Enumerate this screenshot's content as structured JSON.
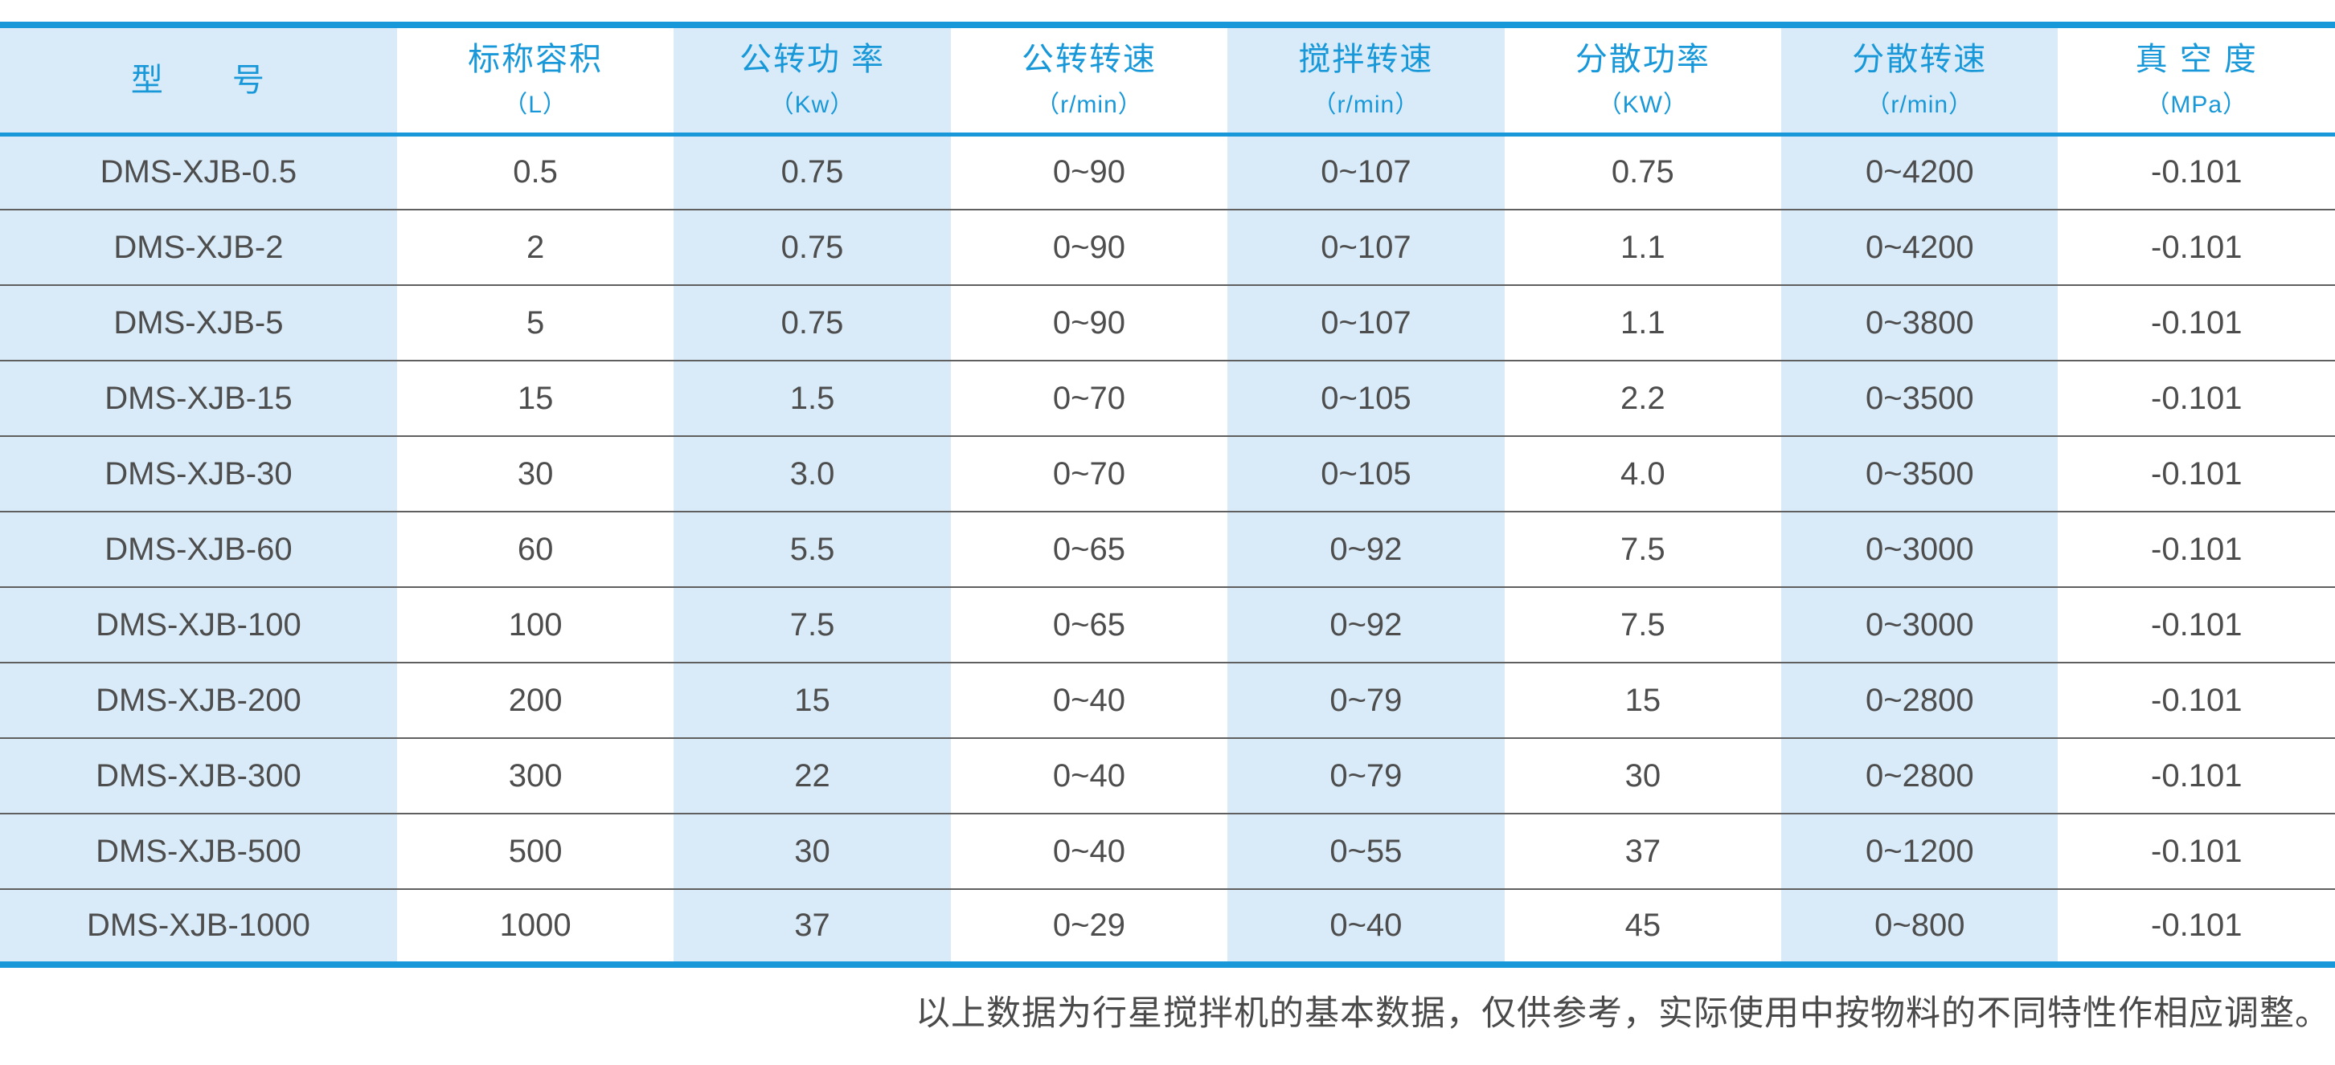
{
  "table": {
    "columns": [
      {
        "label": "型　　号",
        "unit": ""
      },
      {
        "label": "标称容积",
        "unit": "（L）"
      },
      {
        "label": "公转功 率",
        "unit": "（Kw）"
      },
      {
        "label": "公转转速",
        "unit": "（r/min）"
      },
      {
        "label": "搅拌转速",
        "unit": "（r/min）"
      },
      {
        "label": "分散功率",
        "unit": "（KW）"
      },
      {
        "label": "分散转速",
        "unit": "（r/min）"
      },
      {
        "label": "真 空 度",
        "unit": "（MPa）"
      }
    ],
    "rows": [
      [
        "DMS-XJB-0.5",
        "0.5",
        "0.75",
        "0~90",
        "0~107",
        "0.75",
        "0~4200",
        "-0.101"
      ],
      [
        "DMS-XJB-2",
        "2",
        "0.75",
        "0~90",
        "0~107",
        "1.1",
        "0~4200",
        "-0.101"
      ],
      [
        "DMS-XJB-5",
        "5",
        "0.75",
        "0~90",
        "0~107",
        "1.1",
        "0~3800",
        "-0.101"
      ],
      [
        "DMS-XJB-15",
        "15",
        "1.5",
        "0~70",
        "0~105",
        "2.2",
        "0~3500",
        "-0.101"
      ],
      [
        "DMS-XJB-30",
        "30",
        "3.0",
        "0~70",
        "0~105",
        "4.0",
        "0~3500",
        "-0.101"
      ],
      [
        "DMS-XJB-60",
        "60",
        "5.5",
        "0~65",
        "0~92",
        "7.5",
        "0~3000",
        "-0.101"
      ],
      [
        "DMS-XJB-100",
        "100",
        "7.5",
        "0~65",
        "0~92",
        "7.5",
        "0~3000",
        "-0.101"
      ],
      [
        "DMS-XJB-200",
        "200",
        "15",
        "0~40",
        "0~79",
        "15",
        "0~2800",
        "-0.101"
      ],
      [
        "DMS-XJB-300",
        "300",
        "22",
        "0~40",
        "0~79",
        "30",
        "0~2800",
        "-0.101"
      ],
      [
        "DMS-XJB-500",
        "500",
        "30",
        "0~40",
        "0~55",
        "37",
        "0~1200",
        "-0.101"
      ],
      [
        "DMS-XJB-1000",
        "1000",
        "37",
        "0~29",
        "0~40",
        "45",
        "0~800",
        "-0.101"
      ]
    ]
  },
  "footer": {
    "note": "以上数据为行星搅拌机的基本数据，仅供参考，实际使用中按物料的不同特性作相应调整。"
  },
  "colors": {
    "accent_blue": "#1898d8",
    "stripe_blue": "#d9ebf8",
    "body_text": "#4d4d4d",
    "row_line": "#5f5f5f"
  }
}
